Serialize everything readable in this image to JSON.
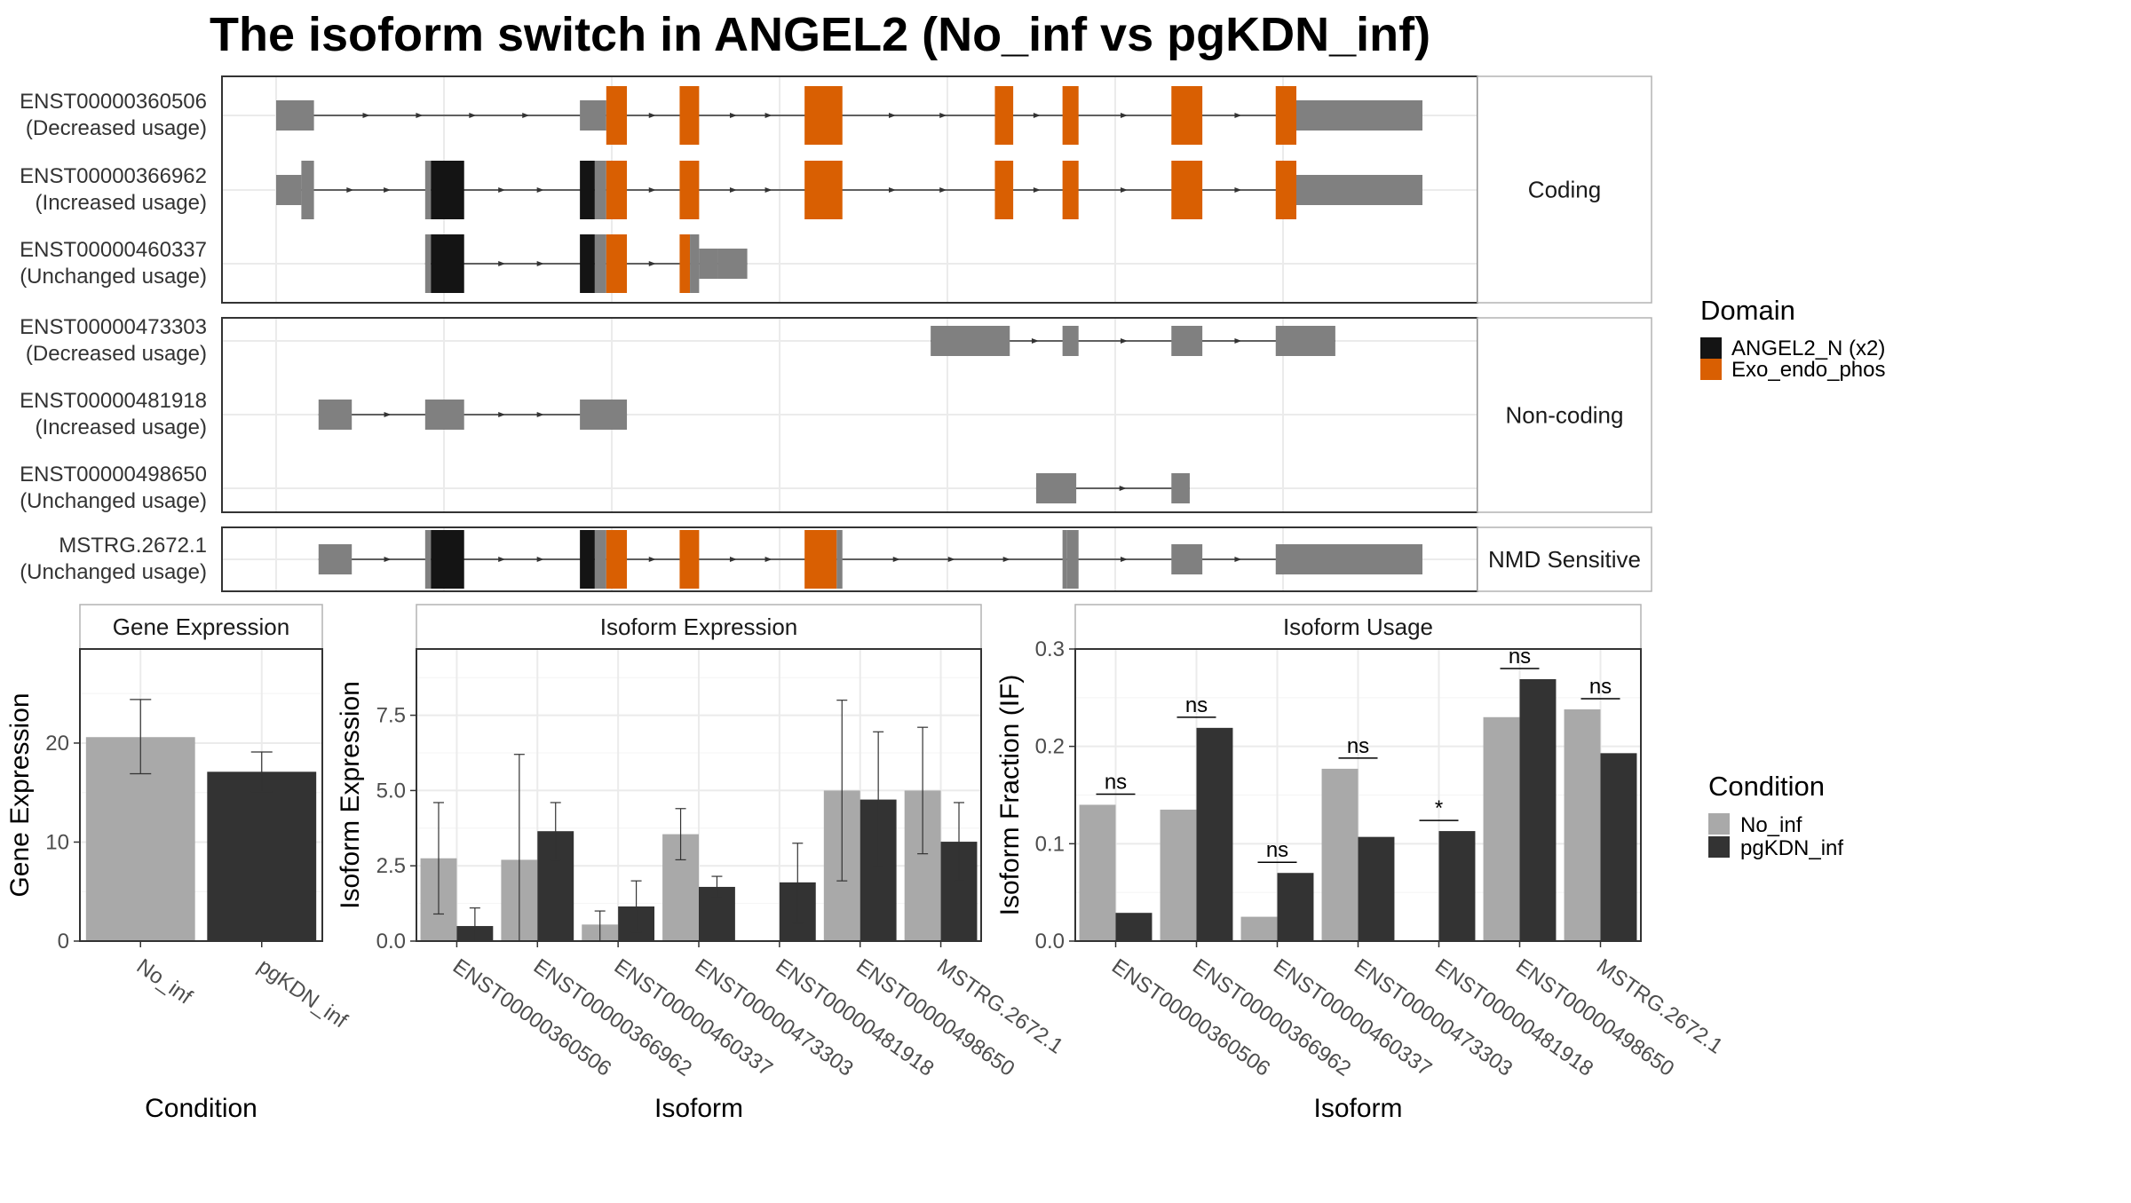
{
  "title": "The isoform switch in ANGEL2 (No_inf vs pgKDN_inf)",
  "colors": {
    "exon": "#808080",
    "domain_angel": "#141414",
    "domain_exo": "#d95f02",
    "no_inf": "#a9a9a9",
    "pgkdn_inf": "#333333",
    "panel_border": "#333333",
    "strip_border": "#b3b3b3",
    "grid": "#ebebeb"
  },
  "legends": {
    "domain": {
      "title": "Domain",
      "entries": [
        {
          "label": "ANGEL2_N (x2)",
          "color": "#141414"
        },
        {
          "label": "Exo_endo_phos",
          "color": "#d95f02"
        }
      ]
    },
    "condition": {
      "title": "Condition",
      "entries": [
        {
          "label": "No_inf",
          "color": "#a9a9a9"
        },
        {
          "label": "pgKDN_inf",
          "color": "#333333"
        }
      ]
    }
  },
  "chart_data": [
    {
      "type": "isoform-structure",
      "coordinate_range": [
        0,
        1000
      ],
      "groups": [
        {
          "facet_label": "Coding",
          "transcripts": [
            {
              "id": "ENST00000360506",
              "status": "(Decreased usage)",
              "exons": [
                [
                  0,
                  33,
                  "utr"
                ],
                [
                  265,
                  288,
                  "utr"
                ],
                [
                  288,
                  306,
                  "exo"
                ],
                [
                  352,
                  369,
                  "exo"
                ],
                [
                  461,
                  494,
                  "exo"
                ],
                [
                  627,
                  643,
                  "exo"
                ],
                [
                  686,
                  700,
                  "exo"
                ],
                [
                  781,
                  808,
                  "exo"
                ],
                [
                  872,
                  890,
                  "exo"
                ],
                [
                  890,
                  1000,
                  "utr"
                ]
              ]
            },
            {
              "id": "ENST00000366962",
              "status": "(Increased usage)",
              "exons": [
                [
                  0,
                  22,
                  "utr"
                ],
                [
                  22,
                  33,
                  "utr"
                ],
                [
                  130,
                  135,
                  "utr"
                ],
                [
                  135,
                  164,
                  "angel"
                ],
                [
                  265,
                  278,
                  "angel"
                ],
                [
                  278,
                  288,
                  "utr"
                ],
                [
                  288,
                  306,
                  "exo"
                ],
                [
                  352,
                  369,
                  "exo"
                ],
                [
                  461,
                  494,
                  "exo"
                ],
                [
                  627,
                  643,
                  "exo"
                ],
                [
                  686,
                  700,
                  "exo"
                ],
                [
                  781,
                  808,
                  "exo"
                ],
                [
                  872,
                  890,
                  "exo"
                ],
                [
                  890,
                  1000,
                  "utr"
                ]
              ]
            },
            {
              "id": "ENST00000460337",
              "status": "(Unchanged usage)",
              "exons": [
                [
                  130,
                  135,
                  "utr"
                ],
                [
                  135,
                  164,
                  "angel"
                ],
                [
                  265,
                  278,
                  "angel"
                ],
                [
                  278,
                  288,
                  "utr"
                ],
                [
                  288,
                  306,
                  "exo"
                ],
                [
                  352,
                  361,
                  "exo"
                ],
                [
                  361,
                  369,
                  "utr"
                ],
                [
                  369,
                  385,
                  "utr"
                ],
                [
                  385,
                  411,
                  "utr"
                ]
              ]
            }
          ]
        },
        {
          "facet_label": "Non-coding",
          "transcripts": [
            {
              "id": "ENST00000473303",
              "status": "(Decreased usage)",
              "exons": [
                [
                  571,
                  640,
                  "utr"
                ],
                [
                  686,
                  700,
                  "utr"
                ],
                [
                  781,
                  808,
                  "utr"
                ],
                [
                  872,
                  924,
                  "utr"
                ]
              ]
            },
            {
              "id": "ENST00000481918",
              "status": "(Increased usage)",
              "exons": [
                [
                  37,
                  66,
                  "utr"
                ],
                [
                  130,
                  164,
                  "utr"
                ],
                [
                  265,
                  306,
                  "utr"
                ]
              ]
            },
            {
              "id": "ENST00000498650",
              "status": "(Unchanged usage)",
              "exons": [
                [
                  663,
                  698,
                  "utr"
                ],
                [
                  781,
                  797,
                  "utr"
                ]
              ]
            }
          ]
        },
        {
          "facet_label": "NMD Sensitive",
          "transcripts": [
            {
              "id": "MSTRG.2672.1",
              "status": "(Unchanged usage)",
              "exons": [
                [
                  37,
                  66,
                  "utr"
                ],
                [
                  130,
                  135,
                  "utr"
                ],
                [
                  135,
                  164,
                  "angel"
                ],
                [
                  265,
                  278,
                  "angel"
                ],
                [
                  278,
                  288,
                  "utr"
                ],
                [
                  288,
                  306,
                  "exo"
                ],
                [
                  352,
                  369,
                  "exo"
                ],
                [
                  461,
                  489,
                  "exo"
                ],
                [
                  489,
                  494,
                  "utr"
                ],
                [
                  686,
                  690,
                  "utr"
                ],
                [
                  690,
                  700,
                  "utr"
                ],
                [
                  781,
                  808,
                  "utr"
                ],
                [
                  872,
                  1000,
                  "utr"
                ]
              ]
            }
          ]
        }
      ]
    },
    {
      "type": "bar",
      "panel_title": "Gene Expression",
      "xlabel": "Condition",
      "ylabel": "Gene Expression",
      "ylim": [
        0,
        29.5
      ],
      "yticks": [
        0,
        10,
        20
      ],
      "categories": [
        "No_inf",
        "pgKDN_inf"
      ],
      "values": [
        20.6,
        17.1
      ],
      "error_low": [
        16.9,
        15.1
      ],
      "error_high": [
        24.4,
        19.1
      ]
    },
    {
      "type": "bar",
      "panel_title": "Isoform Expression",
      "xlabel": "Isoform",
      "ylabel": "Isoform Expression",
      "ylim": [
        0,
        9.7
      ],
      "yticks": [
        0,
        2.5,
        5,
        7.5
      ],
      "ytick_labels": [
        "0.0",
        "2.5",
        "5.0",
        "7.5"
      ],
      "categories": [
        "ENST00000360506",
        "ENST00000366962",
        "ENST00000460337",
        "ENST00000473303",
        "ENST00000481918",
        "ENST00000498650",
        "MSTRG.2672.1"
      ],
      "series": [
        {
          "name": "No_inf",
          "values": [
            2.75,
            2.7,
            0.55,
            3.55,
            0.0,
            5.0,
            5.0
          ],
          "error_low": [
            0.9,
            0.0,
            0.0,
            2.7,
            0.0,
            2.0,
            2.9
          ],
          "error_high": [
            4.6,
            6.2,
            1.0,
            4.4,
            0.0,
            8.0,
            7.1
          ]
        },
        {
          "name": "pgKDN_inf",
          "values": [
            0.5,
            3.65,
            1.15,
            1.8,
            1.95,
            4.7,
            3.3
          ],
          "error_low": [
            0.0,
            2.7,
            0.3,
            1.45,
            0.6,
            2.5,
            2.0
          ],
          "error_high": [
            1.1,
            4.6,
            2.0,
            2.15,
            3.25,
            6.95,
            4.6
          ]
        }
      ]
    },
    {
      "type": "bar",
      "panel_title": "Isoform Usage",
      "xlabel": "Isoform",
      "ylabel": "Isoform Fraction (IF)",
      "ylim": [
        0,
        0.3
      ],
      "yticks": [
        0,
        0.1,
        0.2,
        0.3
      ],
      "ytick_labels": [
        "0.0",
        "0.1",
        "0.2",
        "0.3"
      ],
      "categories": [
        "ENST00000360506",
        "ENST00000366962",
        "ENST00000460337",
        "ENST00000473303",
        "ENST00000481918",
        "ENST00000498650",
        "MSTRG.2672.1"
      ],
      "series": [
        {
          "name": "No_inf",
          "values": [
            0.14,
            0.135,
            0.025,
            0.177,
            0.0,
            0.23,
            0.238
          ]
        },
        {
          "name": "pgKDN_inf",
          "values": [
            0.029,
            0.219,
            0.07,
            0.107,
            0.113,
            0.269,
            0.193
          ]
        }
      ],
      "significance": [
        "ns",
        "ns",
        "ns",
        "ns",
        "*",
        "ns",
        "ns"
      ]
    }
  ]
}
